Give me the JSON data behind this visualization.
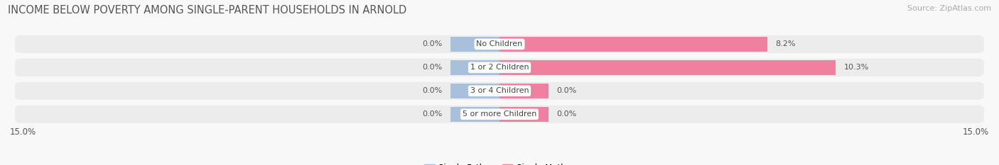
{
  "title": "INCOME BELOW POVERTY AMONG SINGLE-PARENT HOUSEHOLDS IN ARNOLD",
  "source": "Source: ZipAtlas.com",
  "categories": [
    "No Children",
    "1 or 2 Children",
    "3 or 4 Children",
    "5 or more Children"
  ],
  "single_father": [
    0.0,
    0.0,
    0.0,
    0.0
  ],
  "single_mother": [
    8.2,
    10.3,
    0.0,
    0.0
  ],
  "father_color": "#a8c0dc",
  "mother_color": "#f080a0",
  "row_bg_color": "#ececec",
  "xlim": 15.0,
  "title_fontsize": 10.5,
  "source_fontsize": 8,
  "label_fontsize": 8,
  "category_fontsize": 8,
  "legend_fontsize": 8.5,
  "bar_height": 0.62,
  "bg_color": "#f8f8f8",
  "father_stub": 1.5,
  "mother_stub": 1.5
}
